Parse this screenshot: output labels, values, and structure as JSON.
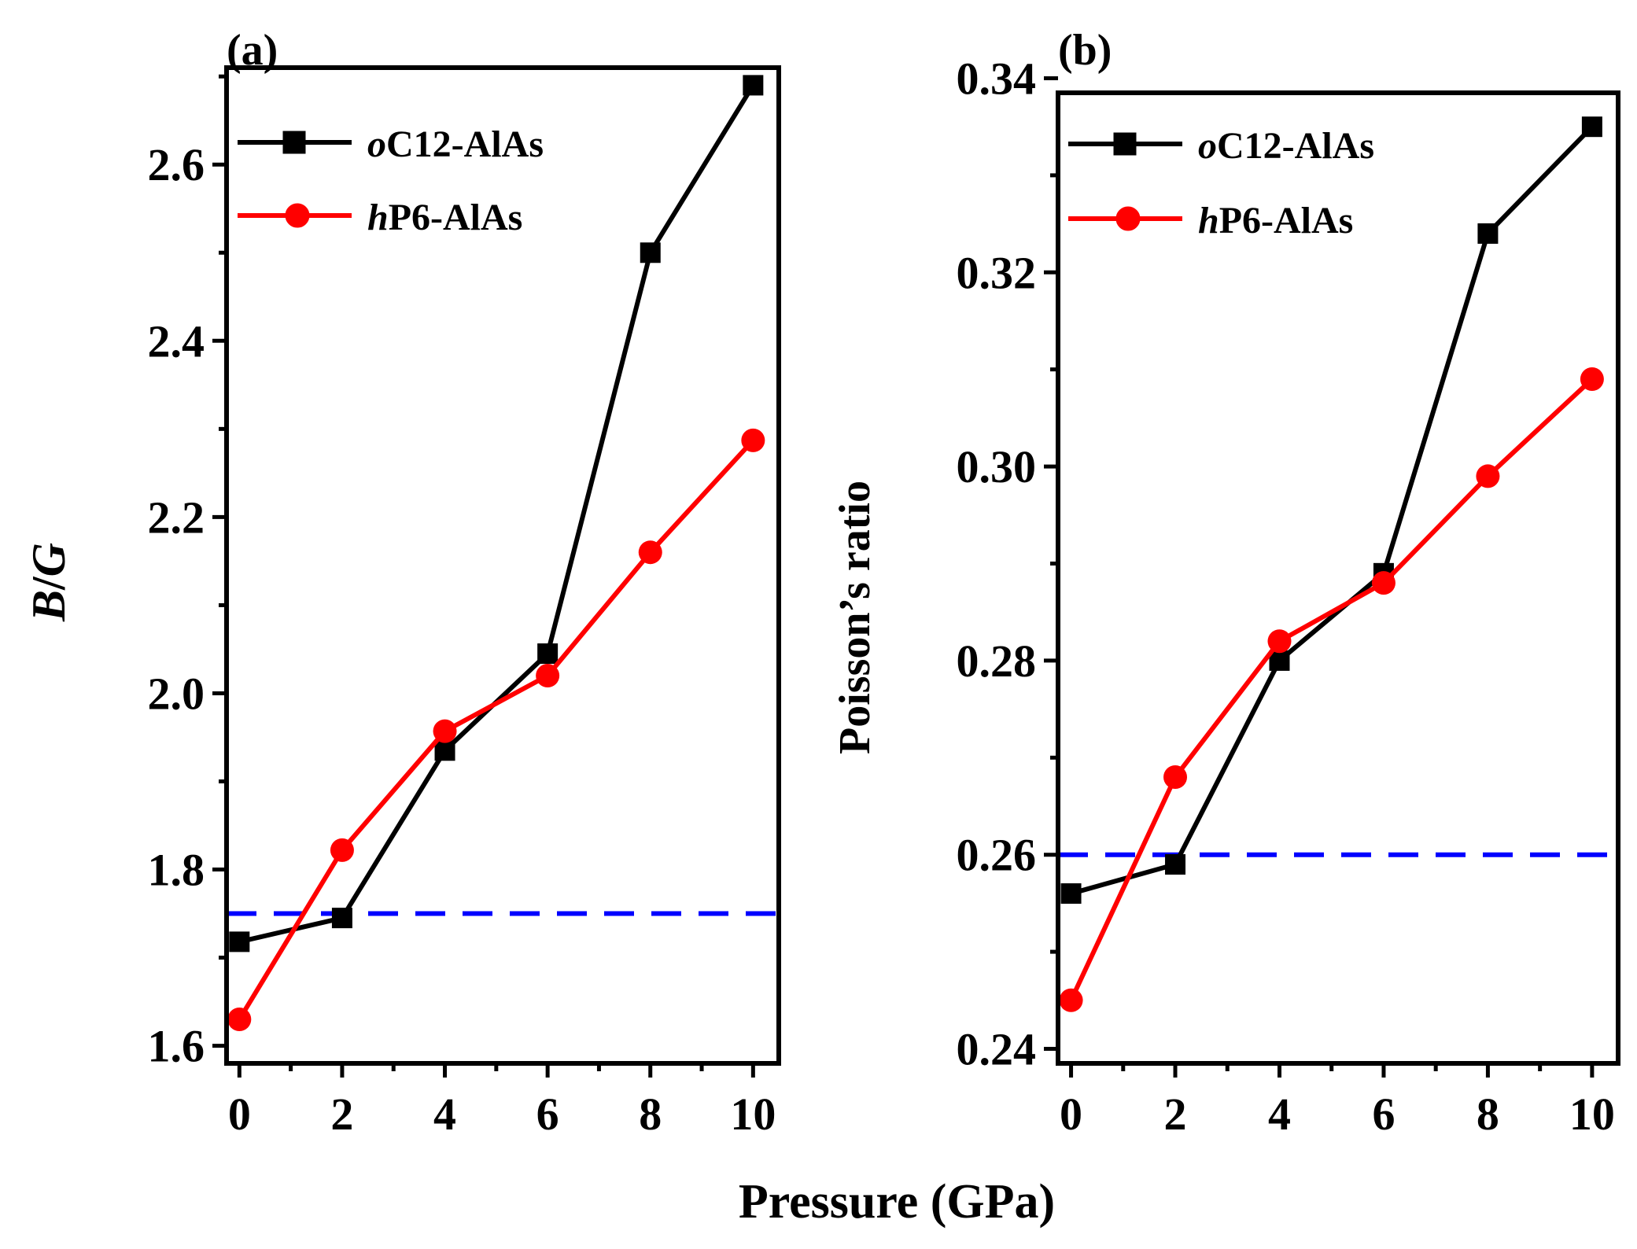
{
  "figure": {
    "xlabel": "Pressure (GPa)",
    "colors": {
      "oC12": "#000000",
      "hP6": "#ff0000",
      "threshold": "#0000ff",
      "axis": "#000000"
    }
  },
  "chart_data": [
    {
      "panel_label": "(a)",
      "type": "line",
      "ylabel_italic_1": "B",
      "ylabel_sep": "/",
      "ylabel_italic_2": "G",
      "xlabel": "Pressure (GPa)",
      "xlim": [
        -0.25,
        10.5
      ],
      "xticks": [
        0,
        2,
        4,
        6,
        8,
        10
      ],
      "xtick_labels": [
        "0",
        "2",
        "4",
        "6",
        "8",
        "10"
      ],
      "ylim": [
        1.58,
        2.71
      ],
      "yticks": [
        1.6,
        1.8,
        2.0,
        2.2,
        2.4,
        2.6
      ],
      "ytick_labels": [
        "1.6",
        "1.8",
        "2.0",
        "2.2",
        "2.4",
        "2.6"
      ],
      "yminor": [
        1.7,
        1.9,
        2.1,
        2.3,
        2.5,
        2.7
      ],
      "threshold": 1.75,
      "legend_position": "top-left",
      "x": [
        0,
        2,
        4,
        6,
        8,
        10
      ],
      "series": [
        {
          "name_italic": "o",
          "name_rest": "C12-AlAs",
          "marker": "square",
          "values": [
            1.718,
            1.745,
            1.935,
            2.045,
            2.5,
            2.69
          ]
        },
        {
          "name_italic": "h",
          "name_rest": "P6-AlAs",
          "marker": "circle",
          "values": [
            1.63,
            1.822,
            1.957,
            2.02,
            2.16,
            2.287
          ]
        }
      ]
    },
    {
      "panel_label": "(b)",
      "type": "line",
      "ylabel": "Poisson’s ratio",
      "xlabel": "Pressure (GPa)",
      "xlim": [
        -0.25,
        10.5
      ],
      "xticks": [
        0,
        2,
        4,
        6,
        8,
        10
      ],
      "xtick_labels": [
        "0",
        "2",
        "4",
        "6",
        "8",
        "10"
      ],
      "ylim": [
        0.2385,
        0.3385
      ],
      "yticks": [
        0.24,
        0.26,
        0.28,
        0.3,
        0.32,
        0.34
      ],
      "ytick_labels": [
        "0.24",
        "0.26",
        "0.28",
        "0.30",
        "0.32",
        "0.34"
      ],
      "yminor": [
        0.25,
        0.27,
        0.29,
        0.31,
        0.33
      ],
      "threshold": 0.26,
      "legend_position": "top-left",
      "x": [
        0,
        2,
        4,
        6,
        8,
        10
      ],
      "series": [
        {
          "name_italic": "o",
          "name_rest": "C12-AlAs",
          "marker": "square",
          "values": [
            0.256,
            0.259,
            0.28,
            0.289,
            0.324,
            0.335
          ]
        },
        {
          "name_italic": "h",
          "name_rest": "P6-AlAs",
          "marker": "circle",
          "values": [
            0.245,
            0.268,
            0.282,
            0.288,
            0.299,
            0.309
          ]
        }
      ]
    }
  ]
}
